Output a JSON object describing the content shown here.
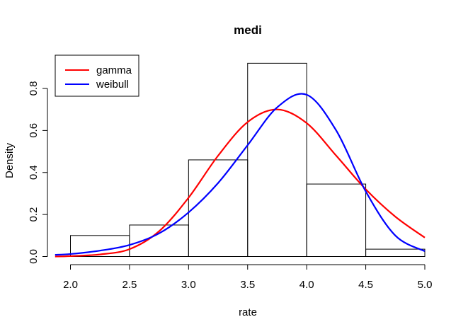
{
  "chart_data": {
    "type": "histogram",
    "title": "medi",
    "xlabel": "rate",
    "ylabel": "Density",
    "xlim": [
      1.87,
      5.0
    ],
    "ylim": [
      0,
      0.95
    ],
    "x_ticks": [
      "2.0",
      "2.5",
      "3.0",
      "3.5",
      "4.0",
      "4.5",
      "5.0"
    ],
    "y_ticks": [
      "0.0",
      "0.2",
      "0.4",
      "0.6",
      "0.8"
    ],
    "bins": [
      {
        "from": 2.0,
        "to": 2.5,
        "density": 0.1
      },
      {
        "from": 2.5,
        "to": 3.0,
        "density": 0.15
      },
      {
        "from": 3.0,
        "to": 3.5,
        "density": 0.46
      },
      {
        "from": 3.5,
        "to": 4.0,
        "density": 0.92
      },
      {
        "from": 4.0,
        "to": 4.5,
        "density": 0.345
      },
      {
        "from": 4.5,
        "to": 5.0,
        "density": 0.035
      }
    ],
    "series": [
      {
        "name": "gamma",
        "color": "#ff0000",
        "x": [
          1.87,
          2.0,
          2.25,
          2.5,
          2.75,
          3.0,
          3.25,
          3.5,
          3.75,
          4.0,
          4.25,
          4.5,
          4.75,
          5.0
        ],
        "y": [
          0.0,
          0.002,
          0.01,
          0.035,
          0.12,
          0.28,
          0.48,
          0.64,
          0.7,
          0.635,
          0.48,
          0.32,
          0.19,
          0.09
        ]
      },
      {
        "name": "weibull",
        "color": "#0000ff",
        "x": [
          1.87,
          2.0,
          2.25,
          2.5,
          2.75,
          3.0,
          3.25,
          3.5,
          3.75,
          4.0,
          4.25,
          4.5,
          4.75,
          5.0
        ],
        "y": [
          0.008,
          0.012,
          0.028,
          0.055,
          0.11,
          0.21,
          0.35,
          0.53,
          0.71,
          0.77,
          0.6,
          0.31,
          0.1,
          0.025
        ]
      }
    ],
    "legend": {
      "position": "top-left",
      "entries": [
        "gamma",
        "weibull"
      ]
    }
  }
}
